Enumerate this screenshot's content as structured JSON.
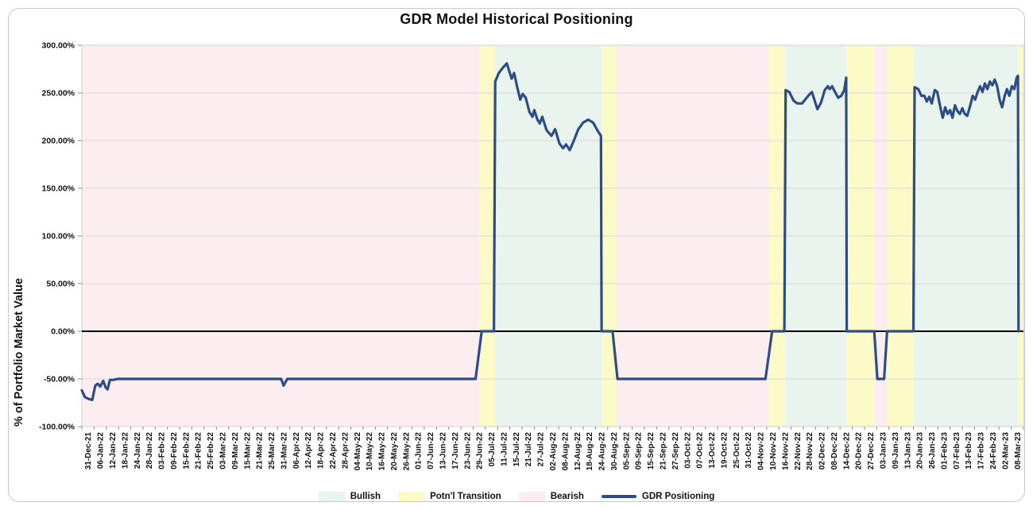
{
  "title": "GDR Model Historical Positioning",
  "legend": [
    {
      "label": "Bullish",
      "type": "swatch",
      "color": "#e9f4ee"
    },
    {
      "label": "Potn'l Transition",
      "type": "swatch",
      "color": "#fcfac6"
    },
    {
      "label": "Bearish",
      "type": "swatch",
      "color": "#fceef0"
    },
    {
      "label": "GDR Positioning",
      "type": "line",
      "color": "#2e4c85"
    }
  ],
  "colors": {
    "bullish": "#e9f4ee",
    "transition": "#fcfac6",
    "bearish": "#fceef0",
    "line": "#2e4c85",
    "grid": "#d9d9d9",
    "zero_line": "#000000",
    "tick": "#8c8c8c",
    "plot_border": "#d0d0d0",
    "text": "#111111"
  },
  "chart_data": {
    "type": "line",
    "title": "GDR Model Historical Positioning",
    "xlabel": "",
    "ylabel": "% of Portfolio Market Value",
    "ylim": [
      -100,
      300
    ],
    "y_tick_step": 50,
    "y_tick_labels": [
      "300.00%",
      "250.00%",
      "200.00%",
      "150.00%",
      "100.00%",
      "50.00%",
      "0.00%",
      "-50.00%",
      "-100.00%"
    ],
    "grid": true,
    "legend_position": "bottom",
    "x_tick_labels": [
      "31-Dec-21",
      "06-Jan-22",
      "12-Jan-22",
      "18-Jan-22",
      "24-Jan-22",
      "28-Jan-22",
      "03-Feb-22",
      "09-Feb-22",
      "15-Feb-22",
      "21-Feb-22",
      "25-Feb-22",
      "03-Mar-22",
      "09-Mar-22",
      "15-Mar-22",
      "21-Mar-22",
      "25-Mar-22",
      "31-Mar-22",
      "06-Apr-22",
      "12-Apr-22",
      "18-Apr-22",
      "22-Apr-22",
      "28-Apr-22",
      "04-May-22",
      "10-May-22",
      "16-May-22",
      "20-May-22",
      "26-May-22",
      "01-Jun-22",
      "07-Jun-22",
      "13-Jun-22",
      "17-Jun-22",
      "23-Jun-22",
      "29-Jun-22",
      "05-Jul-22",
      "11-Jul-22",
      "15-Jul-22",
      "21-Jul-22",
      "27-Jul-22",
      "02-Aug-22",
      "08-Aug-22",
      "12-Aug-22",
      "18-Aug-22",
      "24-Aug-22",
      "30-Aug-22",
      "05-Sep-22",
      "09-Sep-22",
      "15-Sep-22",
      "21-Sep-22",
      "27-Sep-22",
      "03-Oct-22",
      "07-Oct-22",
      "13-Oct-22",
      "19-Oct-22",
      "25-Oct-22",
      "31-Oct-22",
      "04-Nov-22",
      "10-Nov-22",
      "16-Nov-22",
      "22-Nov-22",
      "28-Nov-22",
      "02-Dec-22",
      "08-Dec-22",
      "14-Dec-22",
      "20-Dec-22",
      "27-Dec-22",
      "03-Jan-23",
      "09-Jan-23",
      "13-Jan-23",
      "20-Jan-23",
      "26-Jan-23",
      "01-Feb-23",
      "07-Feb-23",
      "13-Feb-23",
      "17-Feb-23",
      "24-Feb-23",
      "02-Mar-23",
      "08-Mar-23"
    ],
    "regions": [
      {
        "kind": "bearish",
        "label": "Bearish",
        "from": -0.5,
        "to": 32.0
      },
      {
        "kind": "transition",
        "label": "Potn'l Transition",
        "from": 32.0,
        "to": 33.3
      },
      {
        "kind": "bullish",
        "label": "Bullish",
        "from": 33.3,
        "to": 42.0
      },
      {
        "kind": "transition",
        "label": "Potn'l Transition",
        "from": 42.0,
        "to": 43.2
      },
      {
        "kind": "bearish",
        "label": "Bearish",
        "from": 43.2,
        "to": 55.7
      },
      {
        "kind": "transition",
        "label": "Potn'l Transition",
        "from": 55.7,
        "to": 57.0
      },
      {
        "kind": "bullish",
        "label": "Bullish",
        "from": 57.0,
        "to": 62.0
      },
      {
        "kind": "transition",
        "label": "Potn'l Transition",
        "from": 62.0,
        "to": 64.3
      },
      {
        "kind": "bearish",
        "label": "Bearish",
        "from": 64.3,
        "to": 65.35
      },
      {
        "kind": "transition",
        "label": "Potn'l Transition",
        "from": 65.35,
        "to": 67.55
      },
      {
        "kind": "bullish",
        "label": "Bullish",
        "from": 67.55,
        "to": 76.1
      },
      {
        "kind": "transition",
        "label": "Potn'l Transition",
        "from": 76.1,
        "to": 76.5
      }
    ],
    "series": [
      {
        "name": "GDR Positioning",
        "color": "#2e4c85",
        "units": "percent_of_portfolio_market_value",
        "x_units": "x_tick_index",
        "points": [
          [
            -0.5,
            -62
          ],
          [
            -0.25,
            -69
          ],
          [
            0.05,
            -71
          ],
          [
            0.35,
            -72
          ],
          [
            0.6,
            -57
          ],
          [
            0.8,
            -55
          ],
          [
            1.0,
            -58
          ],
          [
            1.25,
            -52
          ],
          [
            1.45,
            -59
          ],
          [
            1.6,
            -61
          ],
          [
            1.8,
            -51
          ],
          [
            2.1,
            -51
          ],
          [
            2.4,
            -50
          ],
          [
            15.8,
            -50
          ],
          [
            16.0,
            -57
          ],
          [
            16.3,
            -50
          ],
          [
            31.7,
            -50
          ],
          [
            32.2,
            0
          ],
          [
            33.2,
            0
          ],
          [
            33.3,
            262
          ],
          [
            33.6,
            271
          ],
          [
            33.9,
            276
          ],
          [
            34.25,
            281
          ],
          [
            34.5,
            271
          ],
          [
            34.65,
            265
          ],
          [
            34.85,
            271
          ],
          [
            35.1,
            256
          ],
          [
            35.35,
            243
          ],
          [
            35.55,
            249
          ],
          [
            35.8,
            245
          ],
          [
            36.1,
            230
          ],
          [
            36.35,
            225
          ],
          [
            36.5,
            232
          ],
          [
            36.75,
            222
          ],
          [
            36.95,
            218
          ],
          [
            37.15,
            225
          ],
          [
            37.5,
            211
          ],
          [
            37.9,
            205
          ],
          [
            38.2,
            212
          ],
          [
            38.55,
            197
          ],
          [
            38.85,
            192
          ],
          [
            39.1,
            196
          ],
          [
            39.4,
            190
          ],
          [
            39.7,
            199
          ],
          [
            40.1,
            212
          ],
          [
            40.5,
            219
          ],
          [
            40.9,
            222
          ],
          [
            41.3,
            219
          ],
          [
            41.7,
            210
          ],
          [
            41.95,
            205
          ],
          [
            42.0,
            0
          ],
          [
            42.9,
            0
          ],
          [
            43.3,
            -50
          ],
          [
            55.4,
            -50
          ],
          [
            55.95,
            0
          ],
          [
            56.95,
            0
          ],
          [
            57.05,
            253
          ],
          [
            57.35,
            251
          ],
          [
            57.7,
            242
          ],
          [
            58.0,
            239
          ],
          [
            58.4,
            239
          ],
          [
            58.9,
            247
          ],
          [
            59.2,
            251
          ],
          [
            59.45,
            241
          ],
          [
            59.65,
            233
          ],
          [
            59.95,
            240
          ],
          [
            60.25,
            253
          ],
          [
            60.5,
            257
          ],
          [
            60.65,
            254
          ],
          [
            60.85,
            257
          ],
          [
            61.05,
            252
          ],
          [
            61.35,
            245
          ],
          [
            61.6,
            247
          ],
          [
            61.85,
            253
          ],
          [
            62.0,
            266
          ],
          [
            62.05,
            0
          ],
          [
            64.3,
            0
          ],
          [
            64.55,
            -50
          ],
          [
            65.1,
            -50
          ],
          [
            65.35,
            0
          ],
          [
            67.5,
            0
          ],
          [
            67.6,
            256
          ],
          [
            67.9,
            254
          ],
          [
            68.15,
            247
          ],
          [
            68.4,
            247
          ],
          [
            68.6,
            241
          ],
          [
            68.8,
            246
          ],
          [
            69.0,
            239
          ],
          [
            69.25,
            253
          ],
          [
            69.45,
            251
          ],
          [
            69.7,
            235
          ],
          [
            69.9,
            224
          ],
          [
            70.1,
            235
          ],
          [
            70.3,
            228
          ],
          [
            70.5,
            232
          ],
          [
            70.7,
            224
          ],
          [
            70.9,
            237
          ],
          [
            71.1,
            231
          ],
          [
            71.3,
            228
          ],
          [
            71.5,
            234
          ],
          [
            71.7,
            228
          ],
          [
            71.9,
            226
          ],
          [
            72.15,
            237
          ],
          [
            72.35,
            247
          ],
          [
            72.55,
            243
          ],
          [
            72.75,
            251
          ],
          [
            72.95,
            257
          ],
          [
            73.15,
            251
          ],
          [
            73.35,
            260
          ],
          [
            73.55,
            254
          ],
          [
            73.75,
            262
          ],
          [
            73.95,
            258
          ],
          [
            74.15,
            264
          ],
          [
            74.35,
            257
          ],
          [
            74.55,
            243
          ],
          [
            74.75,
            235
          ],
          [
            74.95,
            246
          ],
          [
            75.15,
            254
          ],
          [
            75.35,
            247
          ],
          [
            75.55,
            257
          ],
          [
            75.75,
            254
          ],
          [
            75.95,
            266
          ],
          [
            76.05,
            268
          ],
          [
            76.1,
            0
          ]
        ]
      }
    ]
  }
}
